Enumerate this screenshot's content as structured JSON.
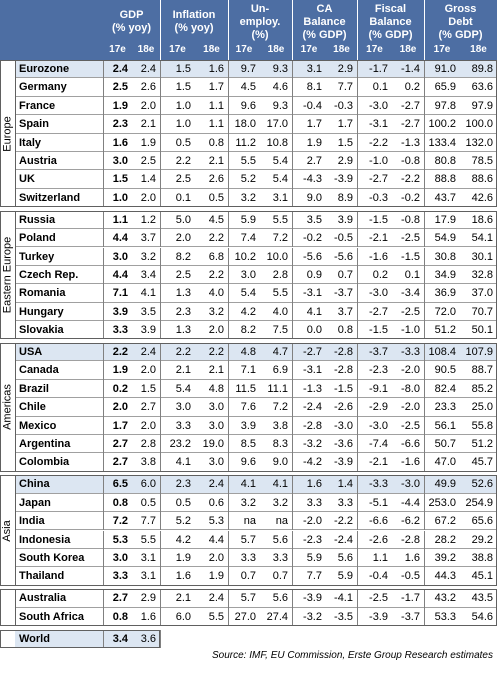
{
  "header": {
    "groups": [
      {
        "lines": [
          "GDP",
          "(% yoy)"
        ],
        "periods": [
          "17e",
          "18e"
        ]
      },
      {
        "lines": [
          "Inflation",
          "(% yoy)"
        ],
        "periods": [
          "17e",
          "18e"
        ]
      },
      {
        "lines": [
          "Un-",
          "employ.",
          "(%)"
        ],
        "periods": [
          "17e",
          "18e"
        ]
      },
      {
        "lines": [
          "CA",
          "Balance",
          "(% GDP)"
        ],
        "periods": [
          "17e",
          "18e"
        ]
      },
      {
        "lines": [
          "Fiscal",
          "Balance",
          "(% GDP)"
        ],
        "periods": [
          "17e",
          "18e"
        ]
      },
      {
        "lines": [
          "Gross",
          "Debt",
          "(% GDP)"
        ],
        "periods": [
          "17e",
          "18e"
        ]
      }
    ]
  },
  "groups": [
    {
      "region": "Europe",
      "rows": [
        {
          "country": "Eurozone",
          "highlight": true,
          "values": [
            "2.4",
            "2.4",
            "1.5",
            "1.6",
            "9.7",
            "9.3",
            "3.1",
            "2.9",
            "-1.7",
            "-1.4",
            "91.0",
            "89.8"
          ]
        },
        {
          "country": "Germany",
          "values": [
            "2.5",
            "2.6",
            "1.5",
            "1.7",
            "4.5",
            "4.6",
            "8.1",
            "7.7",
            "0.1",
            "0.2",
            "65.9",
            "63.6"
          ]
        },
        {
          "country": "France",
          "values": [
            "1.9",
            "2.0",
            "1.0",
            "1.1",
            "9.6",
            "9.3",
            "-0.4",
            "-0.3",
            "-3.0",
            "-2.7",
            "97.8",
            "97.9"
          ]
        },
        {
          "country": "Spain",
          "values": [
            "2.3",
            "2.1",
            "1.0",
            "1.1",
            "18.0",
            "17.0",
            "1.7",
            "1.7",
            "-3.1",
            "-2.7",
            "100.2",
            "100.0"
          ]
        },
        {
          "country": "Italy",
          "values": [
            "1.6",
            "1.9",
            "0.5",
            "0.8",
            "11.2",
            "10.8",
            "1.9",
            "1.5",
            "-2.2",
            "-1.3",
            "133.4",
            "132.0"
          ]
        },
        {
          "country": "Austria",
          "values": [
            "3.0",
            "2.5",
            "2.2",
            "2.1",
            "5.5",
            "5.4",
            "2.7",
            "2.9",
            "-1.0",
            "-0.8",
            "80.8",
            "78.5"
          ]
        },
        {
          "country": "UK",
          "values": [
            "1.5",
            "1.4",
            "2.5",
            "2.6",
            "5.2",
            "5.4",
            "-4.3",
            "-3.9",
            "-2.7",
            "-2.2",
            "88.8",
            "88.6"
          ]
        },
        {
          "country": "Switzerland",
          "values": [
            "1.0",
            "2.0",
            "0.1",
            "0.5",
            "3.2",
            "3.1",
            "9.0",
            "8.9",
            "-0.3",
            "-0.2",
            "43.7",
            "42.6"
          ]
        }
      ]
    },
    {
      "region": "Eastern Europe",
      "rows": [
        {
          "country": "Russia",
          "values": [
            "1.1",
            "1.2",
            "5.0",
            "4.5",
            "5.9",
            "5.5",
            "3.5",
            "3.9",
            "-1.5",
            "-0.8",
            "17.9",
            "18.6"
          ]
        },
        {
          "country": "Poland",
          "values": [
            "4.4",
            "3.7",
            "2.0",
            "2.2",
            "7.4",
            "7.2",
            "-0.2",
            "-0.5",
            "-2.1",
            "-2.5",
            "54.9",
            "54.1"
          ]
        },
        {
          "country": "Turkey",
          "values": [
            "3.0",
            "3.2",
            "8.2",
            "6.8",
            "10.2",
            "10.0",
            "-5.6",
            "-5.6",
            "-1.6",
            "-1.5",
            "30.8",
            "30.1"
          ]
        },
        {
          "country": "Czech Rep.",
          "values": [
            "4.4",
            "3.4",
            "2.5",
            "2.2",
            "3.0",
            "2.8",
            "0.9",
            "0.7",
            "0.2",
            "0.1",
            "34.9",
            "32.8"
          ]
        },
        {
          "country": "Romania",
          "values": [
            "7.1",
            "4.1",
            "1.3",
            "4.0",
            "5.4",
            "5.5",
            "-3.1",
            "-3.7",
            "-3.0",
            "-3.4",
            "36.9",
            "37.0"
          ]
        },
        {
          "country": "Hungary",
          "values": [
            "3.9",
            "3.5",
            "2.3",
            "3.2",
            "4.2",
            "4.0",
            "4.1",
            "3.7",
            "-2.7",
            "-2.5",
            "72.0",
            "70.7"
          ]
        },
        {
          "country": "Slovakia",
          "values": [
            "3.3",
            "3.9",
            "1.3",
            "2.0",
            "8.2",
            "7.5",
            "0.0",
            "0.8",
            "-1.5",
            "-1.0",
            "51.2",
            "50.1"
          ]
        }
      ]
    },
    {
      "region": "Americas",
      "rows": [
        {
          "country": "USA",
          "highlight": true,
          "values": [
            "2.2",
            "2.4",
            "2.2",
            "2.2",
            "4.8",
            "4.7",
            "-2.7",
            "-2.8",
            "-3.7",
            "-3.3",
            "108.4",
            "107.9"
          ]
        },
        {
          "country": "Canada",
          "values": [
            "1.9",
            "2.0",
            "2.1",
            "2.1",
            "7.1",
            "6.9",
            "-3.1",
            "-2.8",
            "-2.3",
            "-2.0",
            "90.5",
            "88.7"
          ]
        },
        {
          "country": "Brazil",
          "values": [
            "0.2",
            "1.5",
            "5.4",
            "4.8",
            "11.5",
            "11.1",
            "-1.3",
            "-1.5",
            "-9.1",
            "-8.0",
            "82.4",
            "85.2"
          ]
        },
        {
          "country": "Chile",
          "values": [
            "2.0",
            "2.7",
            "3.0",
            "3.0",
            "7.6",
            "7.2",
            "-2.4",
            "-2.6",
            "-2.9",
            "-2.0",
            "23.3",
            "25.0"
          ]
        },
        {
          "country": "Mexico",
          "values": [
            "1.7",
            "2.0",
            "3.3",
            "3.0",
            "3.9",
            "3.8",
            "-2.8",
            "-3.0",
            "-3.0",
            "-2.5",
            "56.1",
            "55.8"
          ]
        },
        {
          "country": "Argentina",
          "values": [
            "2.7",
            "2.8",
            "23.2",
            "19.0",
            "8.5",
            "8.3",
            "-3.2",
            "-3.6",
            "-7.4",
            "-6.6",
            "50.7",
            "51.2"
          ]
        },
        {
          "country": "Colombia",
          "values": [
            "2.7",
            "3.8",
            "4.1",
            "3.0",
            "9.6",
            "9.0",
            "-4.2",
            "-3.9",
            "-2.1",
            "-1.6",
            "47.0",
            "45.7"
          ]
        }
      ]
    },
    {
      "region": "Asia",
      "rows": [
        {
          "country": "China",
          "highlight": true,
          "values": [
            "6.5",
            "6.0",
            "2.3",
            "2.4",
            "4.1",
            "4.1",
            "1.6",
            "1.4",
            "-3.3",
            "-3.0",
            "49.9",
            "52.6"
          ]
        },
        {
          "country": "Japan",
          "values": [
            "0.8",
            "0.5",
            "0.5",
            "0.6",
            "3.2",
            "3.2",
            "3.3",
            "3.3",
            "-5.1",
            "-4.4",
            "253.0",
            "254.9"
          ]
        },
        {
          "country": "India",
          "values": [
            "7.2",
            "7.7",
            "5.2",
            "5.3",
            "na",
            "na",
            "-2.0",
            "-2.2",
            "-6.6",
            "-6.2",
            "67.2",
            "65.6"
          ]
        },
        {
          "country": "Indonesia",
          "values": [
            "5.3",
            "5.5",
            "4.2",
            "4.4",
            "5.7",
            "5.6",
            "-2.3",
            "-2.4",
            "-2.6",
            "-2.8",
            "28.2",
            "29.2"
          ]
        },
        {
          "country": "South Korea",
          "values": [
            "3.0",
            "3.1",
            "1.9",
            "2.0",
            "3.3",
            "3.3",
            "5.9",
            "5.6",
            "1.1",
            "1.6",
            "39.2",
            "38.8"
          ]
        },
        {
          "country": "Thailand",
          "values": [
            "3.3",
            "3.1",
            "1.6",
            "1.9",
            "0.7",
            "0.7",
            "7.7",
            "5.9",
            "-0.4",
            "-0.5",
            "44.3",
            "45.1"
          ]
        }
      ]
    },
    {
      "rows": [
        {
          "country": "Australia",
          "values": [
            "2.7",
            "2.9",
            "2.1",
            "2.4",
            "5.7",
            "5.6",
            "-3.9",
            "-4.1",
            "-2.5",
            "-1.7",
            "43.2",
            "43.5"
          ]
        },
        {
          "country": "South Africa",
          "values": [
            "0.8",
            "1.6",
            "6.0",
            "5.5",
            "27.0",
            "27.4",
            "-3.2",
            "-3.5",
            "-3.9",
            "-3.7",
            "53.3",
            "54.6"
          ]
        }
      ]
    }
  ],
  "world": {
    "country": "World",
    "highlight": true,
    "values": [
      "3.4",
      "3.6"
    ]
  },
  "source": "Source: IMF, EU Commission, Erste Group Research estimates"
}
